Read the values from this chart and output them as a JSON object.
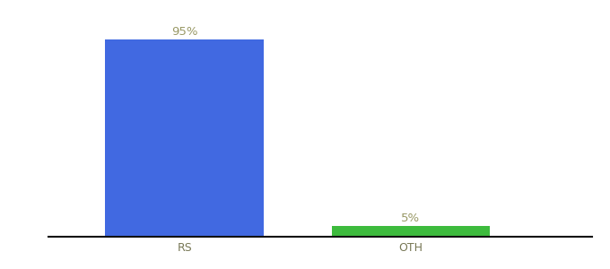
{
  "categories": [
    "RS",
    "OTH"
  ],
  "values": [
    95,
    5
  ],
  "bar_colors": [
    "#4169e1",
    "#3dbb3d"
  ],
  "value_labels": [
    "95%",
    "5%"
  ],
  "background_color": "#ffffff",
  "label_color": "#999966",
  "label_fontsize": 9.5,
  "tick_fontsize": 9,
  "tick_color": "#777755",
  "ylim": [
    0,
    105
  ],
  "spine_color": "#111111",
  "fig_width": 6.8,
  "fig_height": 3.0,
  "dpi": 100
}
